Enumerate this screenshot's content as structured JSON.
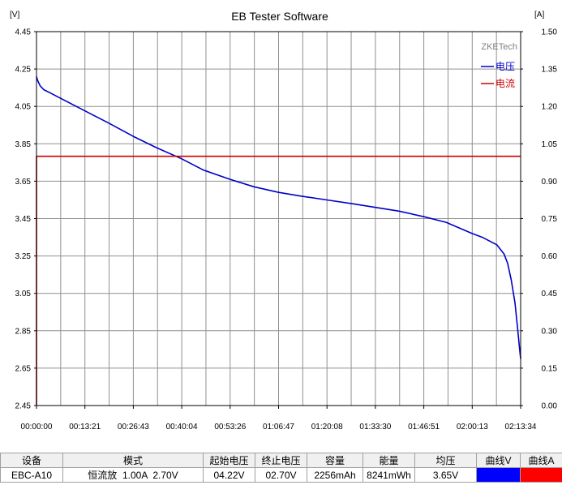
{
  "chart_data": {
    "type": "line",
    "title": "EB Tester Software",
    "brand": "ZKETech",
    "ylabel_left": "[V]",
    "ylabel_right": "[A]",
    "ylim_left": [
      2.45,
      4.45
    ],
    "ylim_right": [
      0.0,
      1.5
    ],
    "yticks_left": [
      "4.45",
      "4.25",
      "4.05",
      "3.85",
      "3.65",
      "3.45",
      "3.25",
      "3.05",
      "2.85",
      "2.65",
      "2.45"
    ],
    "yticks_right": [
      "1.50",
      "1.35",
      "1.20",
      "1.05",
      "0.90",
      "0.75",
      "0.60",
      "0.45",
      "0.30",
      "0.15",
      "0.00"
    ],
    "xticks": [
      "00:00:00",
      "00:13:21",
      "00:26:43",
      "00:40:04",
      "00:53:26",
      "01:06:47",
      "01:20:08",
      "01:33:30",
      "01:46:51",
      "02:00:13",
      "02:13:34"
    ],
    "x_unit": "minutes",
    "xlim": [
      0,
      133.57
    ],
    "grid": true,
    "legend_position": "top-right",
    "series": [
      {
        "name": "电压",
        "axis": "left",
        "color": "#0000c8",
        "x": [
          0,
          0.3,
          1,
          2,
          4,
          6,
          10,
          15,
          20,
          26.7,
          33,
          40,
          46,
          53.4,
          60,
          66.8,
          73,
          80.1,
          87,
          93.5,
          100,
          106.9,
          113,
          120.2,
          123,
          125,
          127,
          129,
          130,
          131,
          132,
          132.7,
          133.2,
          133.57
        ],
        "y": [
          4.21,
          4.19,
          4.16,
          4.14,
          4.12,
          4.1,
          4.06,
          4.01,
          3.96,
          3.89,
          3.83,
          3.77,
          3.71,
          3.66,
          3.62,
          3.59,
          3.57,
          3.55,
          3.53,
          3.51,
          3.49,
          3.46,
          3.43,
          3.37,
          3.35,
          3.33,
          3.31,
          3.26,
          3.21,
          3.12,
          3.0,
          2.87,
          2.77,
          2.7
        ]
      },
      {
        "name": "电流",
        "axis": "right",
        "color": "#cc0000",
        "x": [
          0,
          0,
          133.57
        ],
        "y": [
          0.0,
          1.0,
          1.0
        ]
      }
    ]
  },
  "info_table": {
    "headers": [
      "设备",
      "模式",
      "起始电压",
      "终止电压",
      "容量",
      "能量",
      "均压",
      "曲线V",
      "曲线A"
    ],
    "row": [
      "EBC-A10",
      "恒流放  1.00A  2.70V",
      "04.22V",
      "02.70V",
      "2256mAh",
      "8241mWh",
      "3.65V",
      "",
      ""
    ],
    "curve_v_color": "#0000ff",
    "curve_a_color": "#ff0000"
  }
}
